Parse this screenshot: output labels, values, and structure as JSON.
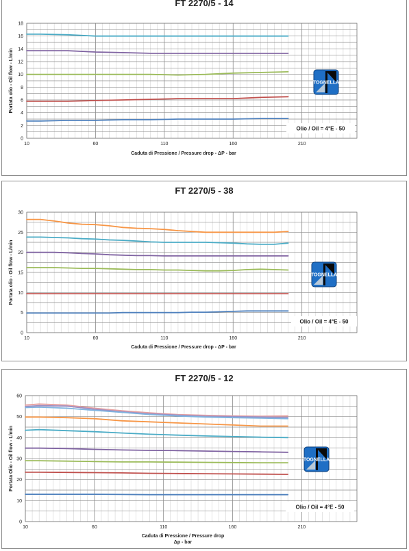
{
  "logo_text": "TOGNELLA",
  "chart_data": [
    {
      "type": "line",
      "title": "FT 2270/5 - 14",
      "xlabel": "Caduta di Pressione / Pressure drop - ΔP - bar",
      "xlabel2": "",
      "ylabel": "Portata olio - Oil flow - L/min",
      "legend_note": "Olio / Oil = 4°E - 50",
      "xlim": [
        10,
        250
      ],
      "ylim": [
        0,
        18
      ],
      "xticks": [
        10,
        60,
        110,
        160,
        210
      ],
      "yticks": [
        0,
        2,
        4,
        6,
        8,
        10,
        12,
        14,
        16,
        18
      ],
      "grid": true,
      "x": [
        10,
        20,
        40,
        60,
        80,
        100,
        120,
        140,
        160,
        180,
        200
      ],
      "series": [
        {
          "color": "#4bacc6",
          "values": [
            16.3,
            16.3,
            16.2,
            16.0,
            16.0,
            16.0,
            16.0,
            16.0,
            16.0,
            16.0,
            16.0
          ]
        },
        {
          "color": "#8064a2",
          "values": [
            13.7,
            13.7,
            13.7,
            13.5,
            13.4,
            13.3,
            13.3,
            13.3,
            13.3,
            13.3,
            13.3
          ]
        },
        {
          "color": "#9bbb59",
          "values": [
            10.0,
            10.0,
            10.0,
            10.0,
            10.0,
            10.0,
            9.9,
            10.0,
            10.2,
            10.3,
            10.4
          ]
        },
        {
          "color": "#c0504d",
          "values": [
            5.8,
            5.8,
            5.8,
            5.9,
            6.0,
            6.1,
            6.2,
            6.2,
            6.2,
            6.4,
            6.5
          ]
        },
        {
          "color": "#4f81bd",
          "values": [
            2.7,
            2.7,
            2.8,
            2.8,
            2.9,
            2.9,
            3.0,
            3.0,
            3.0,
            3.1,
            3.1
          ]
        }
      ]
    },
    {
      "type": "line",
      "title": "FT 2270/5 - 38",
      "xlabel": "Caduta di Pressione / Pressure drop - ΔP - bar",
      "xlabel2": "",
      "ylabel": "Portata olio - Oil flow - L/min",
      "legend_note": "Olio / Oil = 4°E - 50",
      "xlim": [
        10,
        250
      ],
      "ylim": [
        0,
        30
      ],
      "xticks": [
        10,
        60,
        110,
        160,
        210
      ],
      "yticks": [
        0,
        5,
        10,
        15,
        20,
        25,
        30
      ],
      "grid": true,
      "x": [
        10,
        20,
        30,
        40,
        50,
        60,
        70,
        80,
        90,
        100,
        110,
        120,
        130,
        140,
        150,
        160,
        170,
        180,
        190,
        200
      ],
      "series": [
        {
          "color": "#f79646",
          "values": [
            28.2,
            28.2,
            27.8,
            27.3,
            27.0,
            26.9,
            26.6,
            26.2,
            26.0,
            25.9,
            25.7,
            25.4,
            25.2,
            25.0,
            25.0,
            25.0,
            25.0,
            25.0,
            25.0,
            25.2
          ]
        },
        {
          "color": "#4bacc6",
          "values": [
            23.8,
            23.8,
            23.7,
            23.6,
            23.4,
            23.3,
            23.1,
            23.0,
            22.8,
            22.6,
            22.5,
            22.5,
            22.5,
            22.5,
            22.4,
            22.3,
            22.1,
            22.0,
            22.0,
            22.3
          ]
        },
        {
          "color": "#8064a2",
          "values": [
            20.0,
            20.0,
            20.0,
            19.9,
            19.7,
            19.6,
            19.4,
            19.3,
            19.2,
            19.2,
            19.1,
            19.1,
            19.1,
            19.1,
            19.1,
            19.1,
            19.1,
            19.1,
            19.1,
            19.1
          ]
        },
        {
          "color": "#9bbb59",
          "values": [
            16.2,
            16.2,
            16.2,
            16.1,
            16.0,
            16.0,
            15.9,
            15.8,
            15.7,
            15.7,
            15.6,
            15.6,
            15.5,
            15.4,
            15.4,
            15.5,
            15.7,
            15.8,
            15.7,
            15.6
          ]
        },
        {
          "color": "#c0504d",
          "values": [
            9.7,
            9.7,
            9.7,
            9.7,
            9.7,
            9.7,
            9.7,
            9.7,
            9.7,
            9.7,
            9.7,
            9.7,
            9.7,
            9.7,
            9.7,
            9.7,
            9.7,
            9.7,
            9.7,
            9.7
          ]
        },
        {
          "color": "#4f81bd",
          "values": [
            4.9,
            4.9,
            4.9,
            4.9,
            4.9,
            4.9,
            4.9,
            5.0,
            5.0,
            5.0,
            5.0,
            5.0,
            5.1,
            5.1,
            5.2,
            5.3,
            5.4,
            5.4,
            5.4,
            5.4
          ]
        }
      ]
    },
    {
      "type": "line",
      "title": "FT 2270/5 - 12",
      "xlabel": "Caduta di Pressione / Pressure drop",
      "xlabel2": "Δp - bar",
      "ylabel": "Portata Olio - Oil flow - L/min",
      "legend_note": "Olio / Oil = 4°E - 50",
      "xlim": [
        10,
        250
      ],
      "ylim": [
        0,
        60
      ],
      "xticks": [
        10,
        60,
        110,
        160,
        210
      ],
      "yticks": [
        0,
        10,
        20,
        30,
        40,
        50,
        60
      ],
      "grid": true,
      "x": [
        10,
        20,
        40,
        60,
        80,
        100,
        120,
        140,
        160,
        180,
        200
      ],
      "series": [
        {
          "color": "#e6a0a0",
          "values": [
            55.5,
            56.0,
            55.5,
            54.0,
            52.8,
            51.8,
            51.0,
            50.6,
            50.3,
            50.2,
            50.3
          ]
        },
        {
          "color": "#9c8fc4",
          "values": [
            54.8,
            55.2,
            55.0,
            53.5,
            52.3,
            51.3,
            50.7,
            50.2,
            50.0,
            49.8,
            49.6
          ]
        },
        {
          "color": "#7fb4e0",
          "values": [
            54.3,
            54.5,
            54.0,
            53.0,
            52.0,
            51.0,
            50.3,
            49.8,
            49.5,
            49.3,
            49.0
          ]
        },
        {
          "color": "#f79646",
          "values": [
            49.8,
            49.8,
            49.5,
            49.0,
            48.0,
            47.5,
            47.0,
            46.5,
            46.0,
            45.5,
            45.5
          ]
        },
        {
          "color": "#4bacc6",
          "values": [
            43.5,
            43.8,
            43.3,
            42.8,
            42.2,
            41.6,
            41.2,
            40.8,
            40.5,
            40.2,
            40.0
          ]
        },
        {
          "color": "#8064a2",
          "values": [
            35.0,
            35.0,
            34.8,
            34.4,
            34.1,
            33.9,
            33.8,
            33.6,
            33.4,
            33.2,
            33.0
          ]
        },
        {
          "color": "#9bbb59",
          "values": [
            29.0,
            29.0,
            28.8,
            28.6,
            28.4,
            28.4,
            28.3,
            28.2,
            28.1,
            28.0,
            28.0
          ]
        },
        {
          "color": "#c0504d",
          "values": [
            23.5,
            23.5,
            23.4,
            23.3,
            23.2,
            23.0,
            22.9,
            22.8,
            22.7,
            22.6,
            22.5
          ]
        },
        {
          "color": "#4f81bd",
          "values": [
            13.0,
            13.0,
            13.0,
            13.0,
            12.9,
            12.8,
            12.8,
            12.8,
            12.8,
            12.8,
            12.8
          ]
        }
      ]
    }
  ]
}
